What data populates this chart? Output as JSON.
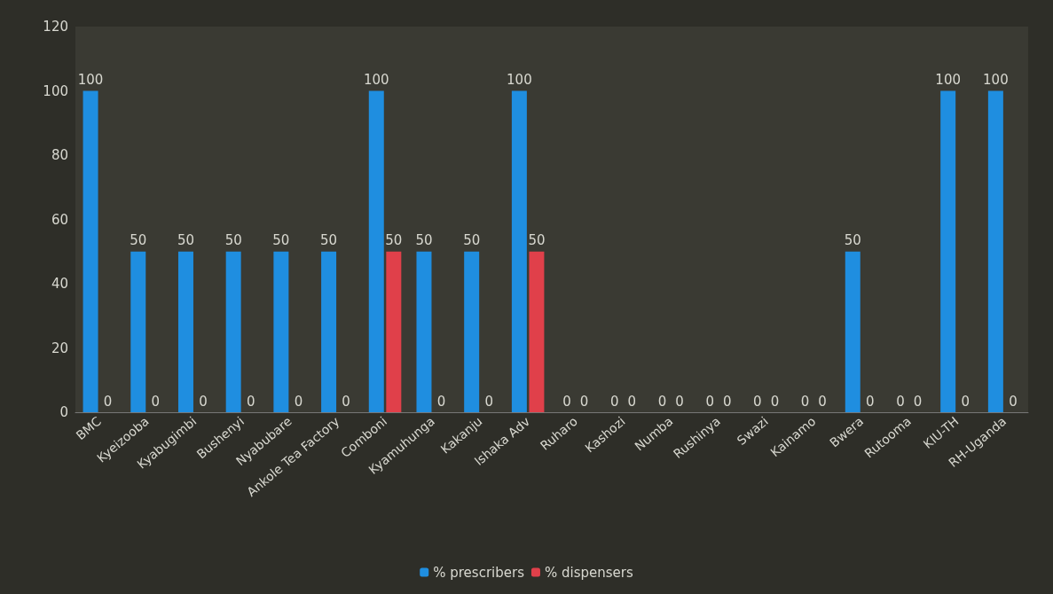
{
  "chart_data": {
    "type": "bar",
    "categories": [
      "BMC",
      "Kyeizooba",
      "Kyabugimbi",
      "Bushenyi",
      "Nyabubare",
      "Ankole Tea Factory",
      "Comboni",
      "Kyamuhunga",
      "Kakanju",
      "Ishaka Adv",
      "Ruharo",
      "Kashozi",
      "Numba",
      "Rushinya",
      "Swazi",
      "Kainamo",
      "Bwera",
      "Rutooma",
      "KIU-TH",
      "RH-Uganda"
    ],
    "series": [
      {
        "name": "% prescribers",
        "color": "#1f8ee0",
        "values": [
          100,
          50,
          50,
          50,
          50,
          50,
          100,
          50,
          50,
          100,
          0,
          0,
          0,
          0,
          0,
          0,
          50,
          0,
          100,
          100
        ]
      },
      {
        "name": "% dispensers",
        "color": "#e0404a",
        "values": [
          0,
          0,
          0,
          0,
          0,
          0,
          50,
          0,
          0,
          50,
          0,
          0,
          0,
          0,
          0,
          0,
          0,
          0,
          0,
          0
        ]
      }
    ],
    "ylim": [
      0,
      120
    ],
    "yticks": [
      0,
      20,
      40,
      60,
      80,
      100,
      120
    ],
    "grid": false,
    "legend": "bottom",
    "data_labels": true
  }
}
